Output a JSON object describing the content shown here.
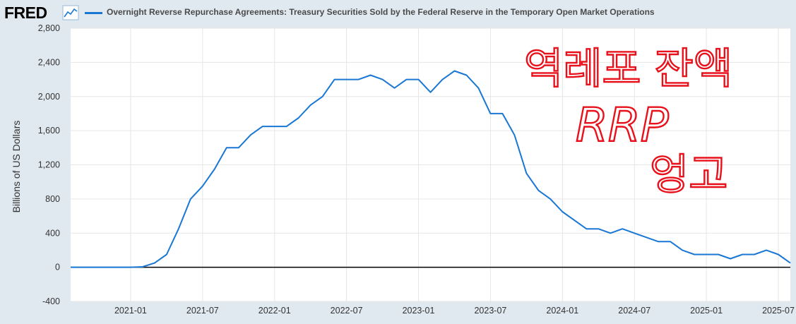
{
  "header": {
    "logo": "FRED",
    "series_title": "Overnight Reverse Repurchase Agreements: Treasury Securities Sold by the Federal Reserve in the Temporary Open Market Operations"
  },
  "annotation": {
    "line1": "역레포 잔액",
    "line2": "RRP",
    "line3": "엉고"
  },
  "colors": {
    "series": "#1a77d3",
    "annotation": "#e8111b",
    "background": "#e1e9f0",
    "plot": "#ffffff"
  },
  "chart_data": {
    "type": "line",
    "title": "Overnight Reverse Repurchase Agreements: Treasury Securities Sold by the Federal Reserve in the Temporary Open Market Operations",
    "ylabel": "Billions of US Dollars",
    "xlabel": "",
    "ylim": [
      -400,
      2800
    ],
    "yticks": [
      -400,
      0,
      400,
      800,
      1200,
      1600,
      2000,
      2400,
      2800
    ],
    "ytick_labels": [
      "-400",
      "0",
      "400",
      "800",
      "1,200",
      "1,600",
      "2,000",
      "2,400",
      "2,800"
    ],
    "xlim": [
      "2020-08",
      "2025-08"
    ],
    "xticks": [
      "2021-01",
      "2021-07",
      "2022-01",
      "2022-07",
      "2023-01",
      "2023-07",
      "2024-01",
      "2024-07",
      "2025-01",
      "2025-07"
    ],
    "grid": true,
    "series": [
      {
        "name": "Overnight Reverse Repurchase Agreements",
        "x": [
          "2020-08",
          "2020-09",
          "2020-10",
          "2020-11",
          "2020-12",
          "2021-01",
          "2021-02",
          "2021-03",
          "2021-04",
          "2021-05",
          "2021-06",
          "2021-07",
          "2021-08",
          "2021-09",
          "2021-10",
          "2021-11",
          "2021-12",
          "2022-01",
          "2022-02",
          "2022-03",
          "2022-04",
          "2022-05",
          "2022-06",
          "2022-07",
          "2022-08",
          "2022-09",
          "2022-10",
          "2022-11",
          "2022-12",
          "2023-01",
          "2023-02",
          "2023-03",
          "2023-04",
          "2023-05",
          "2023-06",
          "2023-07",
          "2023-08",
          "2023-09",
          "2023-10",
          "2023-11",
          "2023-12",
          "2024-01",
          "2024-02",
          "2024-03",
          "2024-04",
          "2024-05",
          "2024-06",
          "2024-07",
          "2024-08",
          "2024-09",
          "2024-10",
          "2024-11",
          "2024-12",
          "2025-01",
          "2025-02",
          "2025-03",
          "2025-04",
          "2025-05",
          "2025-06",
          "2025-07",
          "2025-08"
        ],
        "values": [
          0,
          0,
          0,
          0,
          0,
          0,
          5,
          50,
          150,
          450,
          800,
          950,
          1150,
          1400,
          1400,
          1550,
          1650,
          1650,
          1650,
          1750,
          1900,
          2000,
          2200,
          2200,
          2200,
          2250,
          2200,
          2100,
          2200,
          2200,
          2050,
          2200,
          2300,
          2250,
          2100,
          1800,
          1800,
          1550,
          1100,
          900,
          800,
          650,
          550,
          450,
          450,
          400,
          450,
          400,
          350,
          300,
          300,
          200,
          150,
          150,
          150,
          100,
          150,
          150,
          200,
          150,
          50
        ]
      }
    ]
  }
}
